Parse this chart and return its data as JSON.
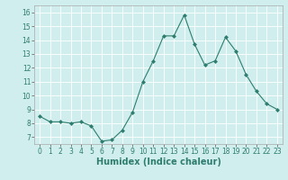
{
  "x": [
    0,
    1,
    2,
    3,
    4,
    5,
    6,
    7,
    8,
    9,
    10,
    11,
    12,
    13,
    14,
    15,
    16,
    17,
    18,
    19,
    20,
    21,
    22,
    23
  ],
  "y": [
    8.5,
    8.1,
    8.1,
    8.0,
    8.1,
    7.8,
    6.7,
    6.8,
    7.5,
    8.8,
    11.0,
    12.5,
    14.3,
    14.3,
    15.8,
    13.7,
    12.2,
    12.5,
    14.2,
    13.2,
    11.5,
    10.3,
    9.4,
    9.0
  ],
  "line_color": "#2e7d6e",
  "marker": "D",
  "marker_size": 2.0,
  "bg_color": "#d0eeee",
  "grid_color": "#ffffff",
  "xlabel": "Humidex (Indice chaleur)",
  "xlim": [
    -0.5,
    23.5
  ],
  "ylim": [
    6.5,
    16.5
  ],
  "yticks": [
    7,
    8,
    9,
    10,
    11,
    12,
    13,
    14,
    15,
    16
  ],
  "xticks": [
    0,
    1,
    2,
    3,
    4,
    5,
    6,
    7,
    8,
    9,
    10,
    11,
    12,
    13,
    14,
    15,
    16,
    17,
    18,
    19,
    20,
    21,
    22,
    23
  ],
  "tick_fontsize": 5.5,
  "xlabel_fontsize": 7.0,
  "linewidth": 0.8
}
